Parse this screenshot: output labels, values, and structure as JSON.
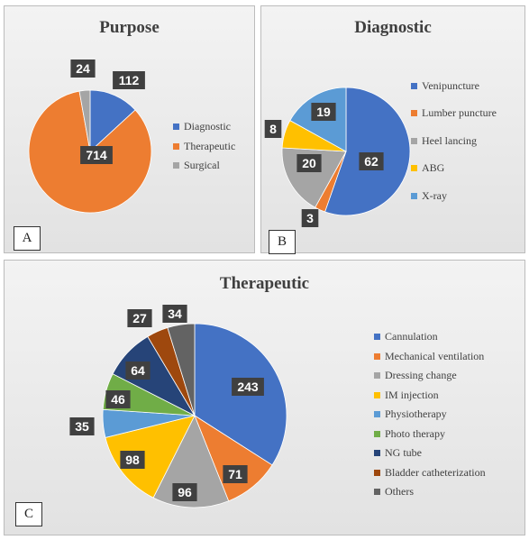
{
  "chart_data": [
    {
      "panel": "A",
      "type": "pie",
      "title": "Purpose",
      "categories": [
        "Diagnostic",
        "Therapeutic",
        "Surgical"
      ],
      "values": [
        112,
        714,
        24
      ],
      "colors": [
        "#4472c4",
        "#ed7d31",
        "#a5a5a5"
      ],
      "legend_position": "right"
    },
    {
      "panel": "B",
      "type": "pie",
      "title": "Diagnostic",
      "categories": [
        "Venipuncture",
        "Lumber puncture",
        "Heel lancing",
        "ABG",
        "X-ray"
      ],
      "values": [
        62,
        3,
        20,
        8,
        19
      ],
      "colors": [
        "#4472c4",
        "#ed7d31",
        "#a5a5a5",
        "#ffc000",
        "#5b9bd5"
      ],
      "legend_position": "right"
    },
    {
      "panel": "C",
      "type": "pie",
      "title": "Therapeutic",
      "categories": [
        "Cannulation",
        "Mechanical ventilation",
        "Dressing change",
        "IM injection",
        "Physiotherapy",
        "Photo therapy",
        "NG tube",
        "Bladder catheterization",
        "Others"
      ],
      "values": [
        243,
        71,
        96,
        98,
        35,
        46,
        64,
        27,
        34
      ],
      "colors": [
        "#4472c4",
        "#ed7d31",
        "#a5a5a5",
        "#ffc000",
        "#5b9bd5",
        "#70ad47",
        "#264478",
        "#9e480e",
        "#636363"
      ],
      "legend_position": "right"
    }
  ]
}
